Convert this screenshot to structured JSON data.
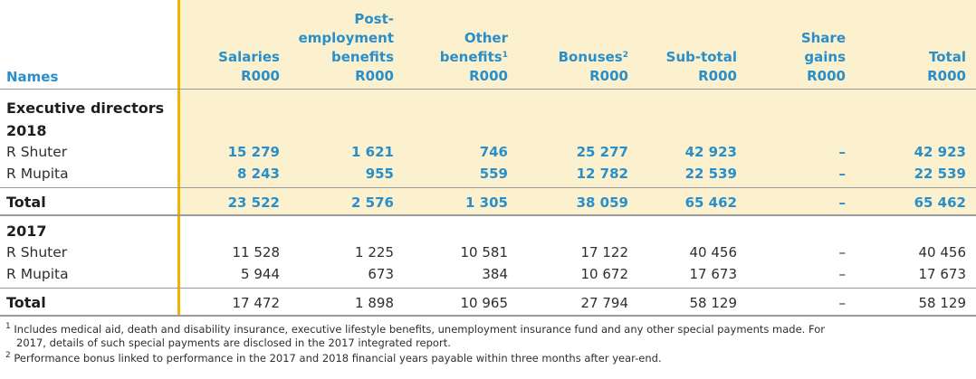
{
  "headers": {
    "names": "Names",
    "salaries": [
      "Salaries",
      "R000"
    ],
    "post_employment": [
      "Post-",
      "employment",
      "benefits",
      "R000"
    ],
    "other_benefits": [
      "Other",
      "benefits",
      "R000"
    ],
    "other_benefits_sup": "1",
    "bonuses": [
      "Bonuses",
      "R000"
    ],
    "bonuses_sup": "2",
    "subtotal": [
      "Sub-total",
      "R000"
    ],
    "share_gains": [
      "Share",
      "gains",
      "R000"
    ],
    "total": [
      "Total",
      "R000"
    ]
  },
  "section_title": "Executive directors",
  "blocks": [
    {
      "year": "2018",
      "rows": [
        {
          "name": "R Shuter",
          "values": [
            "15 279",
            "1 621",
            "746",
            "25 277",
            "42 923",
            "–",
            "42 923"
          ]
        },
        {
          "name": "R Mupita",
          "values": [
            "8 243",
            "955",
            "559",
            "12 782",
            "22 539",
            "–",
            "22 539"
          ]
        }
      ],
      "total": {
        "name": "Total",
        "values": [
          "23 522",
          "2 576",
          "1 305",
          "38 059",
          "65 462",
          "–",
          "65 462"
        ]
      }
    },
    {
      "year": "2017",
      "rows": [
        {
          "name": "R Shuter",
          "values": [
            "11 528",
            "1 225",
            "10 581",
            "17 122",
            "40 456",
            "–",
            "40 456"
          ]
        },
        {
          "name": "R Mupita",
          "values": [
            "5 944",
            "673",
            "384",
            "10 672",
            "17 673",
            "–",
            "17 673"
          ]
        }
      ],
      "total": {
        "name": "Total",
        "values": [
          "17 472",
          "1 898",
          "10 965",
          "27 794",
          "58 129",
          "–",
          "58 129"
        ]
      }
    }
  ],
  "footnotes": [
    {
      "marker": "1",
      "lines": [
        "Includes medical aid, death and disability insurance, executive lifestyle benefits, unemployment insurance fund and any other special payments made. For",
        "2017, details of such special payments are disclosed in the 2017 integrated report."
      ]
    },
    {
      "marker": "2",
      "lines": [
        "Performance bonus linked to performance in the 2017 and 2018 financial years payable within three months after year-end."
      ]
    }
  ],
  "colors": {
    "accent": "#2a8fc9",
    "highlight": "#fcf1cf",
    "divider": "#f0b400"
  }
}
